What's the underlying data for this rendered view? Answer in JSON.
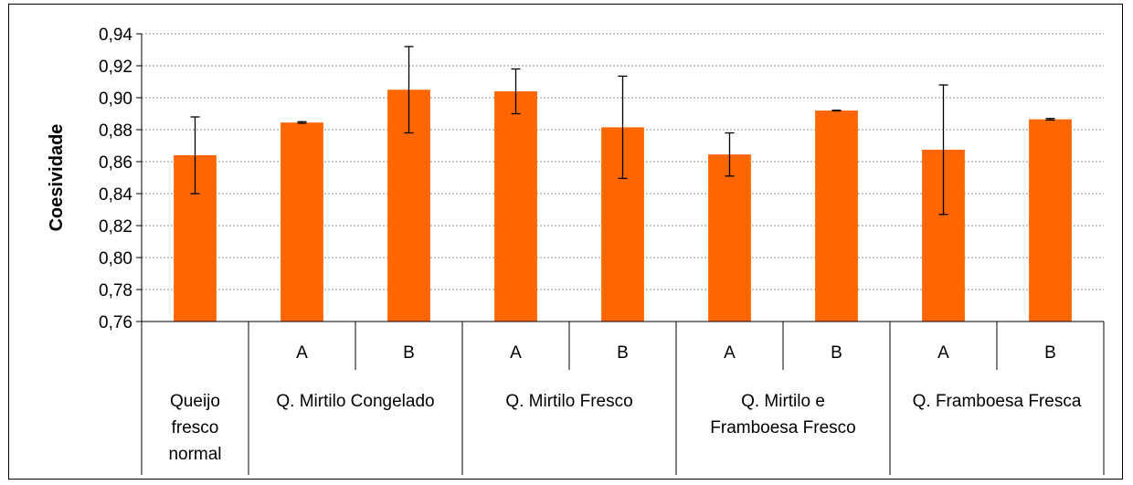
{
  "chart_data": {
    "type": "bar",
    "ylabel": "Coesividade",
    "xlabel": "",
    "title": "",
    "ylim": [
      0.76,
      0.94
    ],
    "y_ticks": [
      "0,76",
      "0,78",
      "0,80",
      "0,82",
      "0,84",
      "0,86",
      "0,88",
      "0,90",
      "0,92",
      "0,94"
    ],
    "grid": true,
    "bar_color": "#FF6600",
    "groups": [
      {
        "label_lines": [
          "Queijo",
          "fresco",
          "normal"
        ],
        "bars": [
          {
            "sub": "",
            "value": 0.864,
            "error": 0.024
          }
        ]
      },
      {
        "label_lines": [
          "Q. Mirtilo Congelado"
        ],
        "bars": [
          {
            "sub": "A",
            "value": 0.8845,
            "error": 0.0005
          },
          {
            "sub": "B",
            "value": 0.905,
            "error": 0.027
          }
        ]
      },
      {
        "label_lines": [
          "Q. Mirtilo Fresco"
        ],
        "bars": [
          {
            "sub": "A",
            "value": 0.904,
            "error": 0.014
          },
          {
            "sub": "B",
            "value": 0.8815,
            "error": 0.032
          }
        ]
      },
      {
        "label_lines": [
          "Q. Mirtilo e",
          "Framboesa Fresco"
        ],
        "bars": [
          {
            "sub": "A",
            "value": 0.8645,
            "error": 0.0135
          },
          {
            "sub": "B",
            "value": 0.892,
            "error": 0.0002
          }
        ]
      },
      {
        "label_lines": [
          "Q. Framboesa Fresca"
        ],
        "bars": [
          {
            "sub": "A",
            "value": 0.8675,
            "error": 0.0405
          },
          {
            "sub": "B",
            "value": 0.8865,
            "error": 0.0005
          }
        ]
      }
    ]
  }
}
